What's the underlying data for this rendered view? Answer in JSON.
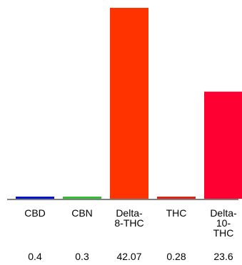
{
  "chart_data": {
    "type": "bar",
    "title": "",
    "xlabel": "",
    "ylabel": "",
    "categories": [
      [
        "CBD"
      ],
      [
        "CBN"
      ],
      [
        "Delta-",
        "8-THC"
      ],
      [
        "THC"
      ],
      [
        "Delta-",
        "10-",
        "THC"
      ]
    ],
    "values": [
      0.4,
      0.3,
      42.07,
      0.28,
      23.6
    ],
    "value_labels": [
      "0.4",
      "0.3",
      "42.07",
      "0.28",
      "23.6"
    ],
    "colors": [
      "#0011cc",
      "#33bb33",
      "#ff3300",
      "#dd2211",
      "#ff0033"
    ],
    "ylim": [
      0,
      42.07
    ],
    "grid": false,
    "legend": "none"
  }
}
